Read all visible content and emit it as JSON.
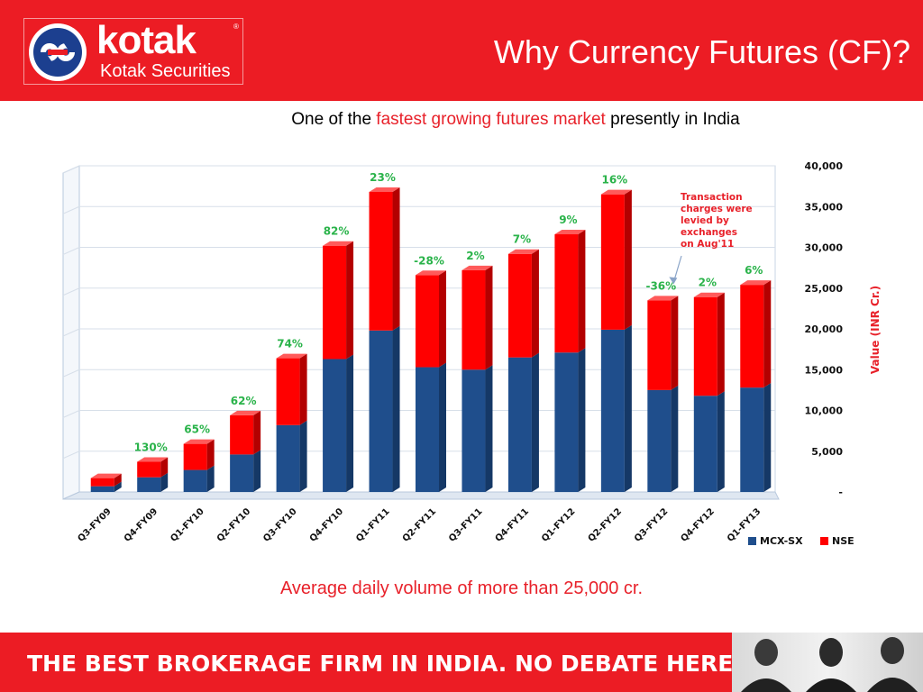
{
  "header": {
    "brand_name": "kotak",
    "brand_sub": "Kotak Securities",
    "registered_mark": "®",
    "title": "Why Currency Futures (CF)?",
    "background": "#ec1c24"
  },
  "subtitle": {
    "before": "One of the ",
    "highlight": "fastest growing futures market",
    "after": " presently in India"
  },
  "chart_data": {
    "type": "bar",
    "stacked": true,
    "categories": [
      "Q3-FY09",
      "Q4-FY09",
      "Q1-FY10",
      "Q2-FY10",
      "Q3-FY10",
      "Q4-FY10",
      "Q1-FY11",
      "Q2-FY11",
      "Q3-FY11",
      "Q4-FY11",
      "Q1-FY12",
      "Q2-FY12",
      "Q3-FY12",
      "Q4-FY12",
      "Q1-FY13"
    ],
    "series": [
      {
        "name": "MCX-SX",
        "color": "#1f4e8c",
        "values": [
          700,
          1800,
          2700,
          4600,
          8200,
          16300,
          19800,
          15300,
          15000,
          16500,
          17100,
          19900,
          12500,
          11800,
          12800
        ]
      },
      {
        "name": "NSE",
        "color": "#ff0000",
        "values": [
          1000,
          1900,
          3200,
          4800,
          8200,
          13900,
          17000,
          11300,
          12200,
          12700,
          14500,
          16600,
          11000,
          12100,
          12600
        ]
      }
    ],
    "growth_labels": [
      "",
      "130%",
      "65%",
      "62%",
      "74%",
      "82%",
      "23%",
      "-28%",
      "2%",
      "7%",
      "9%",
      "16%",
      "-36%",
      "2%",
      "6%"
    ],
    "y_ticks": [
      "-",
      "5,000",
      "10,000",
      "15,000",
      "20,000",
      "25,000",
      "30,000",
      "35,000",
      "40,000"
    ],
    "ylim": [
      0,
      40000
    ],
    "ylabel": "Value (INR Cr.)",
    "y_axis_side": "right",
    "grid": true,
    "legend": [
      "MCX-SX",
      "NSE"
    ],
    "legend_position": "bottom-right",
    "annotation": [
      "Transaction",
      "charges were",
      "levied by",
      "exchanges",
      "on Aug'11"
    ],
    "label_color": "#2ab34a",
    "annotation_color": "#e8212a"
  },
  "bottom_note": "Average daily volume of more than 25,000 cr.",
  "footer": {
    "tagline": "THE BEST BROKERAGE FIRM IN INDIA. NO DEBATE HERE."
  }
}
